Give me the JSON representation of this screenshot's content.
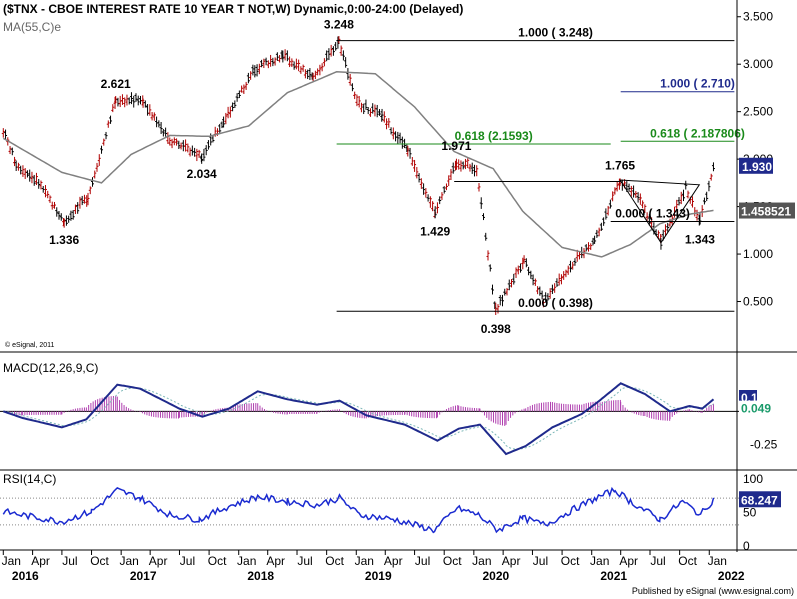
{
  "header": {
    "title": "($TNX - CBOE INTEREST RATE 10 YEAR T NOT,W) Dynamic,0:00-24:00 (Delayed)",
    "ma_label": "MA(55,C)e",
    "copyright": "© eSignal, 2011"
  },
  "footer": {
    "published": "Published by eSignal (www.esignal.com)"
  },
  "colors": {
    "bull_bar": "#b00000",
    "bear_bar": "#000000",
    "ma": "#808080",
    "fib": "#1a8a1a",
    "fib_high": "#1f2a8c",
    "macd": "#1f2a8c",
    "signal": "#7bb7b7",
    "hist": "#b040b0",
    "rsi": "#1a2ad0",
    "last_price_bg": "#1f2a8c"
  },
  "chart_data": [
    {
      "type": "line",
      "panel": "price",
      "series": [
        {
          "name": "$TNX"
        },
        {
          "name": "MA(55,C)e"
        }
      ],
      "pivots": [
        {
          "date": "2016-01-01",
          "value": 2.3
        },
        {
          "date": "2016-02-10",
          "value": 1.95
        },
        {
          "date": "2016-04-20",
          "value": 1.75
        },
        {
          "date": "2016-07-08",
          "value": 1.336
        },
        {
          "date": "2016-09-20",
          "value": 1.6
        },
        {
          "date": "2016-12-15",
          "value": 2.621
        },
        {
          "date": "2017-03-10",
          "value": 2.62
        },
        {
          "date": "2017-06-01",
          "value": 2.2
        },
        {
          "date": "2017-09-08",
          "value": 2.034
        },
        {
          "date": "2017-11-15",
          "value": 2.4
        },
        {
          "date": "2018-02-20",
          "value": 2.95
        },
        {
          "date": "2018-05-18",
          "value": 3.1
        },
        {
          "date": "2018-08-20",
          "value": 2.85
        },
        {
          "date": "2018-11-08",
          "value": 3.248
        },
        {
          "date": "2019-01-03",
          "value": 2.6
        },
        {
          "date": "2019-03-22",
          "value": 2.45
        },
        {
          "date": "2019-06-10",
          "value": 2.1
        },
        {
          "date": "2019-09-03",
          "value": 1.429
        },
        {
          "date": "2019-11-08",
          "value": 1.971
        },
        {
          "date": "2020-01-10",
          "value": 1.9
        },
        {
          "date": "2020-03-09",
          "value": 0.398
        },
        {
          "date": "2020-06-05",
          "value": 0.95
        },
        {
          "date": "2020-08-04",
          "value": 0.51
        },
        {
          "date": "2020-10-20",
          "value": 0.85
        },
        {
          "date": "2021-01-10",
          "value": 1.15
        },
        {
          "date": "2021-03-30",
          "value": 1.765
        },
        {
          "date": "2021-05-25",
          "value": 1.6
        },
        {
          "date": "2021-08-04",
          "value": 1.13
        },
        {
          "date": "2021-10-20",
          "value": 1.7
        },
        {
          "date": "2021-12-03",
          "value": 1.343
        },
        {
          "date": "2022-01-14",
          "value": 1.93
        }
      ],
      "ma_points": [
        {
          "date": "2016-01-01",
          "value": 2.22
        },
        {
          "date": "2016-07-01",
          "value": 1.86
        },
        {
          "date": "2016-11-01",
          "value": 1.75
        },
        {
          "date": "2017-02-01",
          "value": 2.05
        },
        {
          "date": "2017-06-01",
          "value": 2.25
        },
        {
          "date": "2017-10-01",
          "value": 2.24
        },
        {
          "date": "2018-02-01",
          "value": 2.35
        },
        {
          "date": "2018-06-01",
          "value": 2.7
        },
        {
          "date": "2018-11-01",
          "value": 2.92
        },
        {
          "date": "2019-03-01",
          "value": 2.9
        },
        {
          "date": "2019-07-01",
          "value": 2.55
        },
        {
          "date": "2019-11-01",
          "value": 2.08
        },
        {
          "date": "2020-03-01",
          "value": 1.9
        },
        {
          "date": "2020-06-01",
          "value": 1.45
        },
        {
          "date": "2020-10-01",
          "value": 1.07
        },
        {
          "date": "2021-02-01",
          "value": 0.97
        },
        {
          "date": "2021-05-01",
          "value": 1.1
        },
        {
          "date": "2021-08-01",
          "value": 1.32
        },
        {
          "date": "2021-11-01",
          "value": 1.42
        },
        {
          "date": "2022-01-14",
          "value": 1.46
        }
      ],
      "y_ticks": [
        "3.500",
        "3.000",
        "2.500",
        "2.000",
        "1.500",
        "1.000",
        "0.500"
      ],
      "ylim": [
        0.2,
        3.55
      ],
      "last_price": "1.930",
      "ma_value": "1.458521",
      "annotations": [
        {
          "text": "3.248",
          "date": "2018-11-08",
          "value": 3.248
        },
        {
          "text": "2.621",
          "date": "2016-12-15",
          "value": 2.621
        },
        {
          "text": "2.034",
          "date": "2017-09-08",
          "value": 2.034
        },
        {
          "text": "1.336",
          "date": "2016-07-08",
          "value": 1.336
        },
        {
          "text": "1.971",
          "date": "2019-11-08",
          "value": 1.971
        },
        {
          "text": "1.429",
          "date": "2019-09-03",
          "value": 1.429
        },
        {
          "text": "0.398",
          "date": "2020-03-09",
          "value": 0.398
        },
        {
          "text": "1.765",
          "date": "2021-03-30",
          "value": 1.765
        },
        {
          "text": "1.343",
          "date": "2021-12-03",
          "value": 1.343
        }
      ],
      "levels": [
        {
          "label": "1.000 ( 3.248)",
          "value": 3.248,
          "from": "2018-11-01",
          "to": "2022-03-20",
          "color": "#000000"
        },
        {
          "label": "1.000 ( 2.710)",
          "value": 2.71,
          "from": "2021-04-01",
          "to": "2022-03-20",
          "color": "#1f2a8c"
        },
        {
          "label": "0.618 (2.1593)",
          "value": 2.1593,
          "from": "2018-11-01",
          "to": "2021-03-01",
          "color": "#1a8a1a"
        },
        {
          "label": "0.618 ( 2.187806)",
          "value": 2.1878,
          "from": "2021-04-01",
          "to": "2022-03-20",
          "color": "#1a8a1a"
        },
        {
          "label": "0.000 ( 0.398)",
          "value": 0.398,
          "from": "2018-11-01",
          "to": "2022-03-20",
          "color": "#000000"
        },
        {
          "label": "0.000 ( 1.343)",
          "value": 1.343,
          "from": "2021-03-01",
          "to": "2022-03-20",
          "color": "#000000"
        },
        {
          "label": "",
          "value": 1.765,
          "from": "2019-11-01",
          "to": "2021-04-01",
          "color": "#000000"
        }
      ],
      "triangle": [
        {
          "date": "2021-03-30",
          "value": 1.78
        },
        {
          "date": "2021-12-01",
          "value": 1.73
        },
        {
          "date": "2021-08-04",
          "value": 1.12
        }
      ]
    },
    {
      "type": "line",
      "panel": "macd",
      "title": "MACD(12,26,9,C)",
      "series": [
        {
          "name": "MACD"
        },
        {
          "name": "Signal"
        },
        {
          "name": "Histogram"
        }
      ],
      "points": [
        {
          "date": "2016-01-01",
          "value": 0.0
        },
        {
          "date": "2016-03-01",
          "value": -0.05
        },
        {
          "date": "2016-07-01",
          "value": -0.12
        },
        {
          "date": "2016-09-15",
          "value": -0.06
        },
        {
          "date": "2016-12-20",
          "value": 0.2
        },
        {
          "date": "2017-03-01",
          "value": 0.17
        },
        {
          "date": "2017-07-01",
          "value": 0.02
        },
        {
          "date": "2017-09-10",
          "value": -0.04
        },
        {
          "date": "2017-12-01",
          "value": 0.02
        },
        {
          "date": "2018-03-01",
          "value": 0.15
        },
        {
          "date": "2018-06-01",
          "value": 0.09
        },
        {
          "date": "2018-09-01",
          "value": 0.05
        },
        {
          "date": "2018-11-10",
          "value": 0.08
        },
        {
          "date": "2019-02-01",
          "value": -0.03
        },
        {
          "date": "2019-06-01",
          "value": -0.1
        },
        {
          "date": "2019-09-10",
          "value": -0.22
        },
        {
          "date": "2019-11-15",
          "value": -0.13
        },
        {
          "date": "2020-01-20",
          "value": -0.1
        },
        {
          "date": "2020-04-10",
          "value": -0.32
        },
        {
          "date": "2020-06-10",
          "value": -0.26
        },
        {
          "date": "2020-09-01",
          "value": -0.12
        },
        {
          "date": "2020-12-01",
          "value": -0.02
        },
        {
          "date": "2021-01-20",
          "value": 0.07
        },
        {
          "date": "2021-04-01",
          "value": 0.21
        },
        {
          "date": "2021-06-15",
          "value": 0.13
        },
        {
          "date": "2021-09-01",
          "value": 0.0
        },
        {
          "date": "2021-11-01",
          "value": 0.04
        },
        {
          "date": "2021-12-10",
          "value": 0.02
        },
        {
          "date": "2022-01-14",
          "value": 0.09
        }
      ],
      "y_ticks": [
        "0.1",
        "0.049",
        "-0.25"
      ],
      "ylim": [
        -0.38,
        0.25
      ],
      "last_macd": "0.1",
      "last_signal": "0.049"
    },
    {
      "type": "line",
      "panel": "rsi",
      "title": "RSI(14,C)",
      "series": [
        {
          "name": "RSI"
        }
      ],
      "points": [
        {
          "date": "2016-01-01",
          "value": 50
        },
        {
          "date": "2016-04-01",
          "value": 42
        },
        {
          "date": "2016-07-01",
          "value": 35
        },
        {
          "date": "2016-10-01",
          "value": 50
        },
        {
          "date": "2016-12-20",
          "value": 82
        },
        {
          "date": "2017-03-01",
          "value": 70
        },
        {
          "date": "2017-06-01",
          "value": 45
        },
        {
          "date": "2017-09-01",
          "value": 38
        },
        {
          "date": "2017-12-01",
          "value": 58
        },
        {
          "date": "2018-03-01",
          "value": 72
        },
        {
          "date": "2018-06-01",
          "value": 65
        },
        {
          "date": "2018-09-01",
          "value": 60
        },
        {
          "date": "2018-11-10",
          "value": 70
        },
        {
          "date": "2019-01-10",
          "value": 45
        },
        {
          "date": "2019-05-01",
          "value": 38
        },
        {
          "date": "2019-09-01",
          "value": 22
        },
        {
          "date": "2019-11-10",
          "value": 55
        },
        {
          "date": "2020-01-15",
          "value": 45
        },
        {
          "date": "2020-03-15",
          "value": 22
        },
        {
          "date": "2020-06-01",
          "value": 40
        },
        {
          "date": "2020-08-10",
          "value": 30
        },
        {
          "date": "2020-11-01",
          "value": 52
        },
        {
          "date": "2021-01-15",
          "value": 70
        },
        {
          "date": "2021-03-15",
          "value": 82
        },
        {
          "date": "2021-05-01",
          "value": 65
        },
        {
          "date": "2021-08-01",
          "value": 38
        },
        {
          "date": "2021-10-10",
          "value": 65
        },
        {
          "date": "2021-12-05",
          "value": 45
        },
        {
          "date": "2022-01-14",
          "value": 68
        }
      ],
      "y_ticks": [
        "100",
        "50",
        "0"
      ],
      "ylim": [
        0,
        100
      ],
      "guides": [
        70,
        30
      ],
      "last_value": "68.247"
    }
  ],
  "x_axis": {
    "months": [
      {
        "label": "Jan",
        "date": "2016-01-01"
      },
      {
        "label": "Apr",
        "date": "2016-04-01"
      },
      {
        "label": "Jul",
        "date": "2016-07-01"
      },
      {
        "label": "Oct",
        "date": "2016-10-01"
      },
      {
        "label": "Jan",
        "date": "2017-01-01"
      },
      {
        "label": "Apr",
        "date": "2017-04-01"
      },
      {
        "label": "Jul",
        "date": "2017-07-01"
      },
      {
        "label": "Oct",
        "date": "2017-10-01"
      },
      {
        "label": "Jan",
        "date": "2018-01-01"
      },
      {
        "label": "Apr",
        "date": "2018-04-01"
      },
      {
        "label": "Jul",
        "date": "2018-07-01"
      },
      {
        "label": "Oct",
        "date": "2018-10-01"
      },
      {
        "label": "Jan",
        "date": "2019-01-01"
      },
      {
        "label": "Apr",
        "date": "2019-04-01"
      },
      {
        "label": "Jul",
        "date": "2019-07-01"
      },
      {
        "label": "Oct",
        "date": "2019-10-01"
      },
      {
        "label": "Jan",
        "date": "2020-01-01"
      },
      {
        "label": "Apr",
        "date": "2020-04-01"
      },
      {
        "label": "Jul",
        "date": "2020-07-01"
      },
      {
        "label": "Oct",
        "date": "2020-10-01"
      },
      {
        "label": "Jan",
        "date": "2021-01-01"
      },
      {
        "label": "Apr",
        "date": "2021-04-01"
      },
      {
        "label": "Jul",
        "date": "2021-07-01"
      },
      {
        "label": "Oct",
        "date": "2021-10-01"
      },
      {
        "label": "Jan",
        "date": "2022-01-01"
      }
    ],
    "years": [
      {
        "label": "2016",
        "date": "2016-01-01"
      },
      {
        "label": "2017",
        "date": "2017-01-01"
      },
      {
        "label": "2018",
        "date": "2018-01-01"
      },
      {
        "label": "2019",
        "date": "2019-01-01"
      },
      {
        "label": "2020",
        "date": "2020-01-01"
      },
      {
        "label": "2021",
        "date": "2021-01-01"
      },
      {
        "label": "2022",
        "date": "2022-01-01"
      }
    ],
    "xlim": [
      "2015-12-28",
      "2022-03-25"
    ]
  }
}
